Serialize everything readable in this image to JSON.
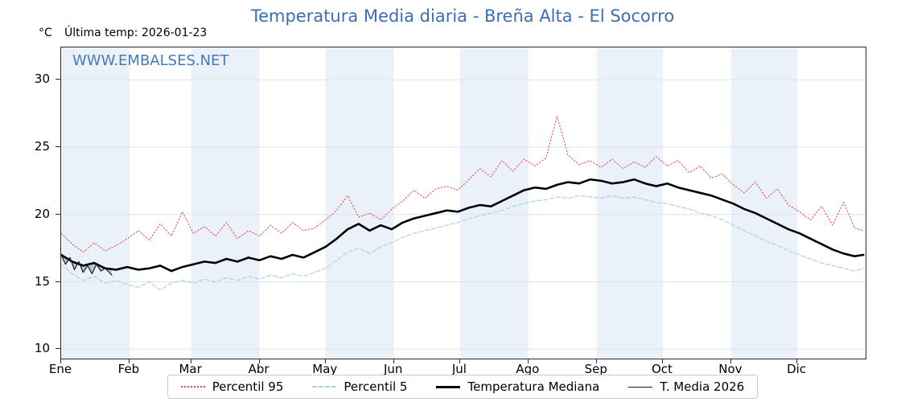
{
  "chart_data": {
    "type": "line",
    "title": "Temperatura Media diaria - Breña Alta - El Socorro",
    "unit_label": "°C",
    "subtitle": "Última temp: 2026-01-23",
    "watermark": "WWW.EMBALSES.NET",
    "title_color": "#3b6fb5",
    "watermark_color": "#4479bd",
    "band_color": "#ebf1f9",
    "grid_color": "#dde4ec",
    "xlim": [
      0,
      365
    ],
    "ylim": [
      9.3,
      32.4
    ],
    "yticks": [
      10,
      15,
      20,
      25,
      30
    ],
    "month_ticks": [
      {
        "label": "Ene",
        "day": 0
      },
      {
        "label": "Feb",
        "day": 31
      },
      {
        "label": "Mar",
        "day": 59
      },
      {
        "label": "Abr",
        "day": 90
      },
      {
        "label": "May",
        "day": 120
      },
      {
        "label": "Jun",
        "day": 151
      },
      {
        "label": "Jul",
        "day": 181
      },
      {
        "label": "Ago",
        "day": 212
      },
      {
        "label": "Sep",
        "day": 243
      },
      {
        "label": "Oct",
        "day": 273
      },
      {
        "label": "Nov",
        "day": 304
      },
      {
        "label": "Dic",
        "day": 334
      }
    ],
    "legend_position": "bottom",
    "series": [
      {
        "name": "Percentil 95",
        "color": "#e0484d",
        "width": 1,
        "dash": "1.5 2.5",
        "legend_style": "dotted",
        "x": [
          0,
          5,
          10,
          15,
          20,
          25,
          30,
          35,
          40,
          45,
          50,
          55,
          60,
          65,
          70,
          75,
          80,
          85,
          90,
          95,
          100,
          105,
          110,
          115,
          120,
          125,
          130,
          135,
          140,
          145,
          150,
          155,
          160,
          165,
          170,
          175,
          180,
          185,
          190,
          195,
          200,
          205,
          210,
          215,
          220,
          225,
          230,
          235,
          240,
          245,
          250,
          255,
          260,
          265,
          270,
          275,
          280,
          285,
          290,
          295,
          300,
          305,
          310,
          315,
          320,
          325,
          330,
          335,
          340,
          345,
          350,
          355,
          360,
          364
        ],
        "y": [
          18.6,
          17.8,
          17.2,
          17.9,
          17.3,
          17.7,
          18.2,
          18.8,
          18.1,
          19.3,
          18.4,
          20.2,
          18.6,
          19.1,
          18.4,
          19.4,
          18.2,
          18.8,
          18.4,
          19.2,
          18.6,
          19.4,
          18.8,
          19.0,
          19.6,
          20.3,
          21.4,
          19.8,
          20.1,
          19.6,
          20.4,
          21.0,
          21.8,
          21.2,
          21.9,
          22.1,
          21.8,
          22.6,
          23.4,
          22.8,
          24.0,
          23.2,
          24.1,
          23.6,
          24.2,
          27.3,
          24.4,
          23.7,
          24.0,
          23.5,
          24.1,
          23.4,
          23.9,
          23.5,
          24.3,
          23.6,
          24.0,
          23.1,
          23.6,
          22.7,
          23.0,
          22.2,
          21.6,
          22.4,
          21.2,
          21.9,
          20.7,
          20.2,
          19.6,
          20.6,
          19.2,
          20.9,
          19.0,
          18.8
        ]
      },
      {
        "name": "Percentil 5",
        "color": "#a7d3e3",
        "width": 1.2,
        "dash": "5 3",
        "legend_style": "dashed",
        "x": [
          0,
          5,
          10,
          15,
          20,
          25,
          30,
          35,
          40,
          45,
          50,
          55,
          60,
          65,
          70,
          75,
          80,
          85,
          90,
          95,
          100,
          105,
          110,
          115,
          120,
          125,
          130,
          135,
          140,
          145,
          150,
          155,
          160,
          165,
          170,
          175,
          180,
          185,
          190,
          195,
          200,
          205,
          210,
          215,
          220,
          225,
          230,
          235,
          240,
          245,
          250,
          255,
          260,
          265,
          270,
          275,
          280,
          285,
          290,
          295,
          300,
          305,
          310,
          315,
          320,
          325,
          330,
          335,
          340,
          345,
          350,
          355,
          360,
          364
        ],
        "y": [
          16.3,
          15.6,
          15.1,
          15.4,
          14.9,
          15.1,
          14.8,
          14.6,
          15.0,
          14.4,
          14.9,
          15.1,
          14.9,
          15.2,
          15.0,
          15.3,
          15.1,
          15.4,
          15.2,
          15.5,
          15.3,
          15.6,
          15.4,
          15.7,
          16.0,
          16.6,
          17.2,
          17.5,
          17.1,
          17.6,
          17.9,
          18.3,
          18.6,
          18.8,
          19.0,
          19.2,
          19.4,
          19.7,
          19.9,
          20.1,
          20.3,
          20.6,
          20.8,
          21.0,
          21.1,
          21.3,
          21.2,
          21.4,
          21.3,
          21.2,
          21.4,
          21.2,
          21.3,
          21.1,
          20.9,
          20.8,
          20.6,
          20.4,
          20.1,
          19.9,
          19.6,
          19.2,
          18.8,
          18.4,
          18.0,
          17.7,
          17.3,
          17.0,
          16.7,
          16.4,
          16.2,
          16.0,
          15.8,
          16.0
        ]
      },
      {
        "name": "Temperatura Mediana",
        "color": "#000000",
        "width": 2.6,
        "dash": "",
        "legend_style": "thick",
        "x": [
          0,
          5,
          10,
          15,
          20,
          25,
          30,
          35,
          40,
          45,
          50,
          55,
          60,
          65,
          70,
          75,
          80,
          85,
          90,
          95,
          100,
          105,
          110,
          115,
          120,
          125,
          130,
          135,
          140,
          145,
          150,
          155,
          160,
          165,
          170,
          175,
          180,
          185,
          190,
          195,
          200,
          205,
          210,
          215,
          220,
          225,
          230,
          235,
          240,
          245,
          250,
          255,
          260,
          265,
          270,
          275,
          280,
          285,
          290,
          295,
          300,
          305,
          310,
          315,
          320,
          325,
          330,
          335,
          340,
          345,
          350,
          355,
          360,
          364
        ],
        "y": [
          17.0,
          16.5,
          16.2,
          16.4,
          16.0,
          15.9,
          16.1,
          15.9,
          16.0,
          16.2,
          15.8,
          16.1,
          16.3,
          16.5,
          16.4,
          16.7,
          16.5,
          16.8,
          16.6,
          16.9,
          16.7,
          17.0,
          16.8,
          17.2,
          17.6,
          18.2,
          18.9,
          19.3,
          18.8,
          19.2,
          18.9,
          19.4,
          19.7,
          19.9,
          20.1,
          20.3,
          20.2,
          20.5,
          20.7,
          20.6,
          21.0,
          21.4,
          21.8,
          22.0,
          21.9,
          22.2,
          22.4,
          22.3,
          22.6,
          22.5,
          22.3,
          22.4,
          22.6,
          22.3,
          22.1,
          22.3,
          22.0,
          21.8,
          21.6,
          21.4,
          21.1,
          20.8,
          20.4,
          20.1,
          19.7,
          19.3,
          18.9,
          18.6,
          18.2,
          17.8,
          17.4,
          17.1,
          16.9,
          17.0
        ]
      },
      {
        "name": "T. Media 2026",
        "color": "#1a1a1a",
        "width": 1.2,
        "dash": "",
        "legend_style": "thin",
        "fill_to": "Temperatura Mediana",
        "fill_color": "#8fb4d8",
        "fill_opacity": 0.65,
        "x": [
          0,
          2,
          4,
          6,
          8,
          10,
          12,
          14,
          16,
          18,
          20,
          23
        ],
        "y": [
          17.0,
          16.3,
          16.8,
          15.9,
          16.5,
          15.7,
          16.2,
          15.6,
          16.3,
          15.8,
          16.0,
          15.5
        ]
      }
    ]
  }
}
